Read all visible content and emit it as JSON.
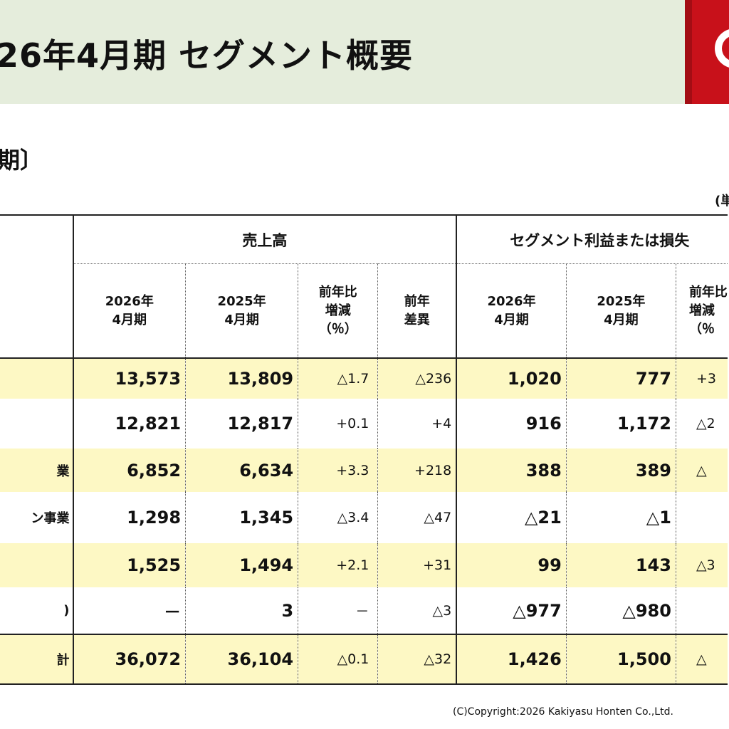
{
  "header": {
    "title": "26年4月期 セグメント概要",
    "section": "期〕",
    "unit": "(単"
  },
  "table": {
    "groups": {
      "sales": "売上高",
      "profit": "セグメント利益または損失"
    },
    "subheaders": [
      [
        "2026年",
        "4月期"
      ],
      [
        "2025年",
        "4月期"
      ],
      [
        "前年比",
        "増減",
        "（％）"
      ],
      [
        "前年",
        "差異"
      ],
      [
        "2026年",
        "4月期"
      ],
      [
        "2025年",
        "4月期"
      ],
      [
        "前年比",
        "増減",
        "（％"
      ]
    ],
    "rows": [
      {
        "label": "",
        "cells": [
          "13,573",
          "13,809",
          "△1.7",
          "△236",
          "1,020",
          "777",
          "+3"
        ]
      },
      {
        "label": "",
        "cells": [
          "12,821",
          "12,817",
          "+0.1",
          "+4",
          "916",
          "1,172",
          "△2"
        ]
      },
      {
        "label": "業",
        "cells": [
          "6,852",
          "6,634",
          "+3.3",
          "+218",
          "388",
          "389",
          "△"
        ]
      },
      {
        "label": "ン事業",
        "cells": [
          "1,298",
          "1,345",
          "△3.4",
          "△47",
          "△21",
          "△1",
          ""
        ]
      },
      {
        "label": "",
        "cells": [
          "1,525",
          "1,494",
          "+2.1",
          "+31",
          "99",
          "143",
          "△3"
        ]
      },
      {
        "label": ")",
        "cells": [
          "－",
          "3",
          "－",
          "△3",
          "△977",
          "△980",
          ""
        ]
      },
      {
        "label": "計",
        "cells": [
          "36,072",
          "36,104",
          "△0.1",
          "△32",
          "1,426",
          "1,500",
          "△"
        ]
      }
    ]
  },
  "footer": {
    "copyright": "(C)Copyright:2026 Kakiyasu Honten Co.,Ltd."
  },
  "colors": {
    "title_bg": "#e5eddc",
    "row_highlight": "#fdf8c4",
    "logo_red": "#c8111a"
  }
}
